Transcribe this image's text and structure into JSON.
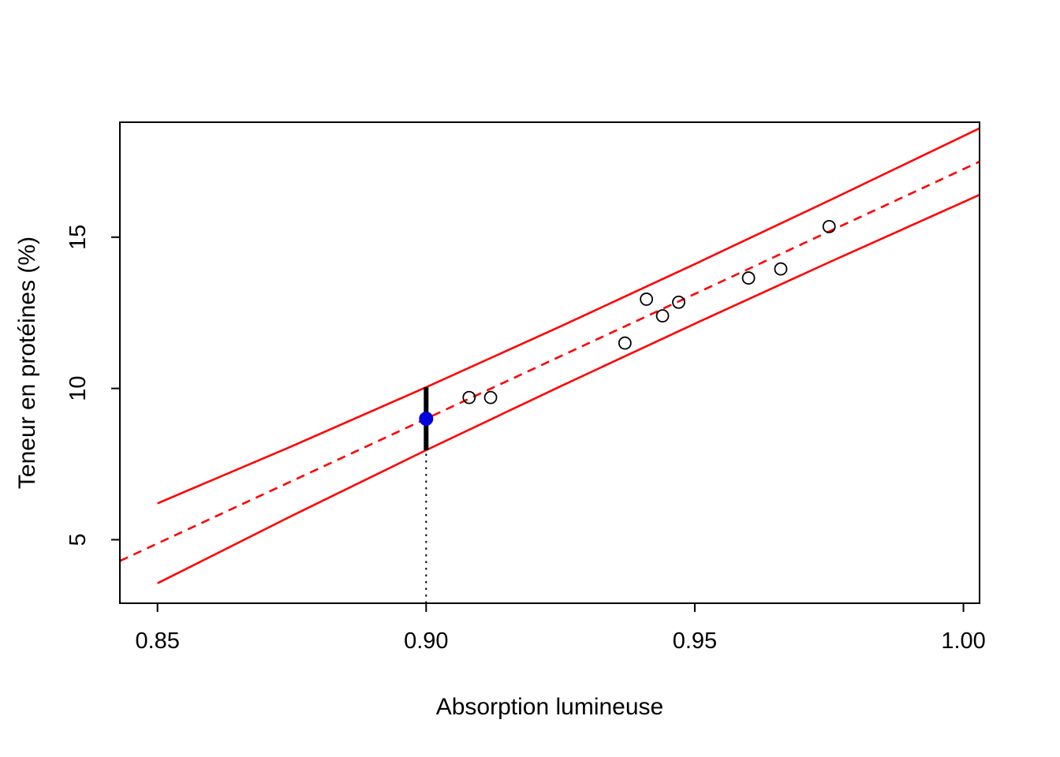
{
  "chart_data": {
    "type": "scatter",
    "title": "",
    "xlabel": "Absorption lumineuse",
    "ylabel": "Teneur en protéines (%)",
    "xlim": [
      0.843,
      1.003
    ],
    "ylim": [
      2.9,
      18.8
    ],
    "grid": false,
    "x_ticks": {
      "values": [
        0.85,
        0.9,
        0.95,
        1.0
      ],
      "labels": [
        "0.85",
        "0.90",
        "0.95",
        "1.00"
      ]
    },
    "y_ticks": {
      "values": [
        5,
        10,
        15
      ],
      "labels": [
        "5",
        "10",
        "15"
      ]
    },
    "points": [
      [
        0.908,
        9.7
      ],
      [
        0.912,
        9.7
      ],
      [
        0.937,
        11.5
      ],
      [
        0.941,
        12.95
      ],
      [
        0.944,
        12.4
      ],
      [
        0.947,
        12.85
      ],
      [
        0.96,
        13.65
      ],
      [
        0.966,
        13.95
      ],
      [
        0.975,
        15.35
      ]
    ],
    "regression_line": {
      "slope": 82.5,
      "intercept": -65.25,
      "style": "dashed",
      "color": "#ff0000"
    },
    "prediction_band": {
      "color": "#ff0000",
      "upper": [
        [
          0.85,
          6.2
        ],
        [
          0.875,
          8.09
        ],
        [
          0.9,
          10.04
        ],
        [
          0.925,
          12.05
        ],
        [
          0.95,
          14.11
        ],
        [
          0.975,
          16.21
        ],
        [
          1.003,
          18.6
        ]
      ],
      "lower": [
        [
          0.85,
          3.56
        ],
        [
          0.875,
          5.79
        ],
        [
          0.9,
          7.96
        ],
        [
          0.925,
          10.07
        ],
        [
          0.95,
          12.14
        ],
        [
          0.975,
          14.17
        ],
        [
          1.003,
          16.4
        ]
      ]
    },
    "reference_line": {
      "x": 0.9,
      "y_top": 10.04,
      "style": "dotted",
      "color": "#000000"
    },
    "interval_segment": {
      "x": 0.9,
      "y1": 7.96,
      "y2": 10.04,
      "color": "#000000"
    },
    "predicted_point": {
      "x": 0.9,
      "y": 9.0,
      "color": "#0000dd"
    },
    "colors": {
      "frame": "#000000",
      "background": "#ffffff"
    }
  }
}
